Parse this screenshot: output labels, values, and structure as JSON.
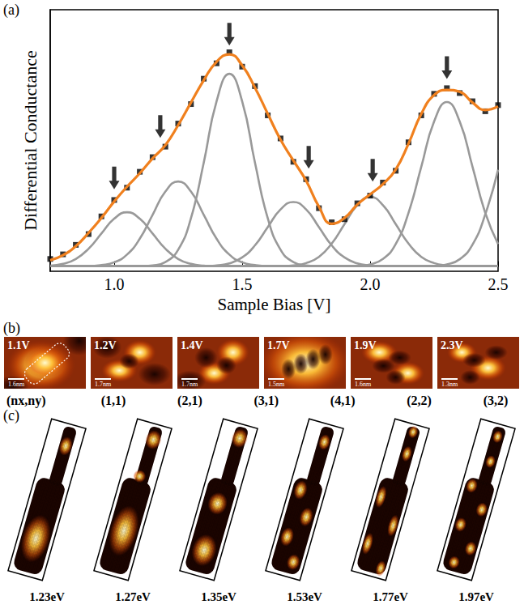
{
  "chart_data": {
    "type": "line",
    "label": "(a)",
    "x_label": "Sample Bias [V]",
    "y_label": "Differential Conductance",
    "xlim": [
      0.75,
      2.5
    ],
    "xticks": [
      {
        "value": 1,
        "label": "1.0"
      },
      1.5,
      {
        "value": 2,
        "label": "2.0"
      },
      2.5
    ],
    "ylim": [
      -2,
      100
    ],
    "tick_labels": "x",
    "grid": false,
    "x": [
      0.75,
      0.8,
      0.85,
      0.9,
      0.95,
      1,
      1.05,
      1.1,
      1.15,
      1.2,
      1.25,
      1.3,
      1.35,
      1.4,
      1.45,
      1.5,
      1.55,
      1.6,
      1.65,
      1.7,
      1.75,
      1.8,
      1.85,
      1.9,
      1.95,
      2,
      2.05,
      2.1,
      2.15,
      2.2,
      2.25,
      2.3,
      2.35,
      2.4,
      2.45,
      2.5
    ],
    "series": [
      {
        "type": "line",
        "color": "#999999",
        "line_style": "solid",
        "values": [
          0.2,
          0.9,
          2.8,
          6.8,
          12.7,
          18.5,
          21,
          18.5,
          12.7,
          6.8,
          2.8,
          0.9,
          0.2,
          0,
          0,
          0,
          0,
          0,
          0,
          0,
          0,
          0,
          0,
          0,
          0,
          0,
          0,
          0,
          0,
          0,
          0,
          0,
          0,
          0,
          0,
          0
        ]
      },
      {
        "type": "line",
        "color": "#999999",
        "line_style": "solid",
        "values": [
          0,
          0,
          0,
          0,
          0.4,
          1.5,
          4.5,
          10.7,
          20,
          29.1,
          33,
          29.1,
          20,
          10.7,
          4.5,
          1.5,
          0.4,
          0,
          0,
          0,
          0,
          0,
          0,
          0,
          0,
          0,
          0,
          0,
          0,
          0,
          0,
          0,
          0,
          0,
          0,
          0
        ]
      },
      {
        "type": "line",
        "color": "#999999",
        "line_style": "solid",
        "values": [
          0,
          0,
          0,
          0,
          0,
          0,
          0,
          0,
          0.3,
          1.6,
          6.4,
          18.7,
          40.4,
          64.3,
          75,
          64.3,
          40.4,
          18.7,
          6.4,
          1.6,
          0.3,
          0,
          0,
          0,
          0,
          0,
          0,
          0,
          0,
          0,
          0,
          0,
          0,
          0,
          0,
          0
        ]
      },
      {
        "type": "line",
        "color": "#999999",
        "line_style": "solid",
        "values": [
          0,
          0,
          0,
          0,
          0,
          0,
          0,
          0,
          0,
          0,
          0,
          0,
          0,
          0.3,
          1.1,
          3.4,
          8.1,
          15.2,
          22.1,
          25,
          22.1,
          15.2,
          8.1,
          3.4,
          1.1,
          0.3,
          0,
          0,
          0,
          0,
          0,
          0,
          0,
          0,
          0,
          0
        ]
      },
      {
        "type": "line",
        "color": "#999999",
        "line_style": "solid",
        "values": [
          0,
          0,
          0,
          0,
          0,
          0,
          0,
          0,
          0,
          0,
          0,
          0,
          0,
          0,
          0,
          0,
          0,
          0,
          0,
          0.3,
          1.2,
          3.6,
          8.8,
          16.4,
          23.8,
          27,
          23.8,
          16.4,
          8.8,
          3.6,
          1.2,
          0.3,
          0,
          0,
          0,
          0
        ]
      },
      {
        "type": "line",
        "color": "#999999",
        "line_style": "solid",
        "values": [
          0,
          0,
          0,
          0,
          0,
          0,
          0,
          0,
          0,
          0,
          0,
          0,
          0,
          0,
          0,
          0,
          0,
          0,
          0,
          0,
          0,
          0,
          0,
          0,
          0,
          0.7,
          2.8,
          8.6,
          20.8,
          38.8,
          56.4,
          64,
          56.4,
          38.8,
          20.8,
          8.6
        ]
      },
      {
        "type": "line",
        "color": "#999999",
        "line_style": "solid",
        "values": [
          0,
          0,
          0,
          0,
          0,
          0,
          0,
          0,
          0,
          0,
          0,
          0,
          0,
          0,
          0,
          0,
          0,
          0,
          0,
          0,
          0,
          0,
          0,
          0,
          0,
          0,
          0,
          0,
          0,
          0,
          0,
          0.7,
          2.7,
          8.4,
          20.2,
          37.6
        ]
      },
      {
        "type": "scatter",
        "color": "#000000",
        "marker": "square",
        "values": [
          2.8,
          4.6,
          8.3,
          12.5,
          19.4,
          25.8,
          30.6,
          36.8,
          42.5,
          46.6,
          55.6,
          63.2,
          73.1,
          79.1,
          83.4,
          77.8,
          70.2,
          58.8,
          49.8,
          40.7,
          33.9,
          22.6,
          17.1,
          18.3,
          24.5,
          27.5,
          32.6,
          37.2,
          48.3,
          58.8,
          67.2,
          69.4,
          67.5,
          64.3,
          60.4,
          62.8
        ]
      },
      {
        "type": "line",
        "color": "#f0801e",
        "line_style": "solid",
        "values": [
          2.3,
          4.3,
          7.8,
          13,
          18.8,
          25.2,
          31,
          36.2,
          42,
          47.2,
          55,
          63.8,
          72.5,
          79.7,
          82.6,
          78.3,
          69.6,
          59.4,
          49.3,
          41.2,
          33.3,
          23.2,
          16.5,
          18.8,
          24,
          28,
          32,
          37.7,
          47.8,
          59.4,
          66.7,
          68.7,
          68,
          63.8,
          60.9,
          62.3
        ]
      }
    ],
    "arrows": {
      "x": [
        1.0,
        1.18,
        1.45,
        1.76,
        2.01,
        2.3
      ],
      "y": [
        30,
        50,
        86,
        38,
        33,
        73
      ],
      "color": "#000000"
    }
  },
  "panel_b": {
    "label": "(b)",
    "images": [
      {
        "bias": "1.1V",
        "scale": "1.6nm"
      },
      {
        "bias": "1.2V",
        "scale": "1.7nm"
      },
      {
        "bias": "1.4V",
        "scale": "1.7nm"
      },
      {
        "bias": "1.7V",
        "scale": "1.5nm"
      },
      {
        "bias": "1.9V",
        "scale": "1.6nm"
      },
      {
        "bias": "2.3V",
        "scale": "1.3nm"
      }
    ],
    "mode_header": "(nx,ny)",
    "modes": [
      "(1,1)",
      "(2,1)",
      "(3,1)",
      "(4,1)",
      "(2,2)",
      "(3,2)"
    ]
  },
  "panel_c": {
    "label": "(c)",
    "maps": [
      "1.23eV",
      "1.27eV",
      "1.35eV",
      "1.53eV",
      "1.77eV",
      "1.97eV"
    ]
  }
}
